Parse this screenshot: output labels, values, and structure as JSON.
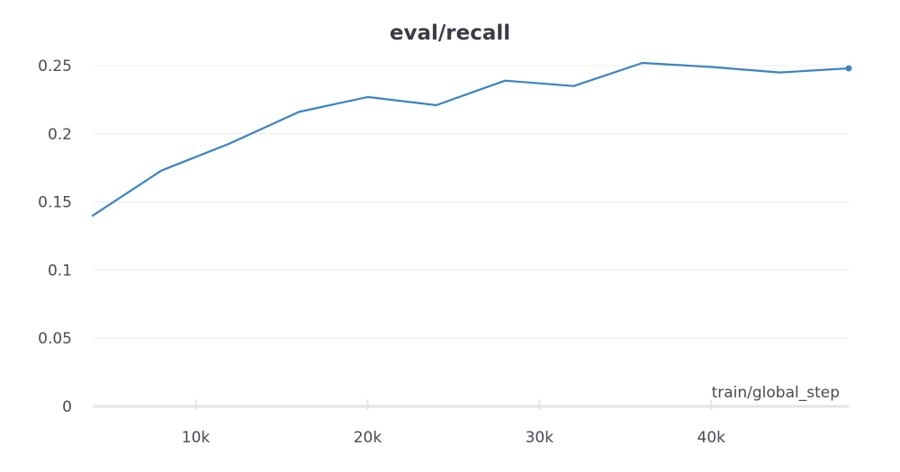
{
  "chart_data": {
    "type": "line",
    "title": "eval/recall",
    "xlabel": "train/global_step",
    "ylabel": "",
    "xlim": [
      4000,
      48000
    ],
    "ylim": [
      0,
      0.25
    ],
    "x_ticks": [
      10000,
      20000,
      30000,
      40000
    ],
    "x_tick_labels": [
      "10k",
      "20k",
      "30k",
      "40k"
    ],
    "y_ticks": [
      0,
      0.05,
      0.1,
      0.15,
      0.2,
      0.25
    ],
    "y_tick_labels": [
      "0",
      "0.05",
      "0.1",
      "0.15",
      "0.2",
      "0.25"
    ],
    "grid": true,
    "series": [
      {
        "color": "#3a84c2",
        "x": [
          4000,
          8000,
          12000,
          16000,
          20000,
          24000,
          28000,
          32000,
          36000,
          40000,
          44000,
          48000
        ],
        "y": [
          0.14,
          0.173,
          0.193,
          0.216,
          0.227,
          0.221,
          0.239,
          0.235,
          0.252,
          0.249,
          0.245,
          0.248
        ]
      }
    ]
  }
}
